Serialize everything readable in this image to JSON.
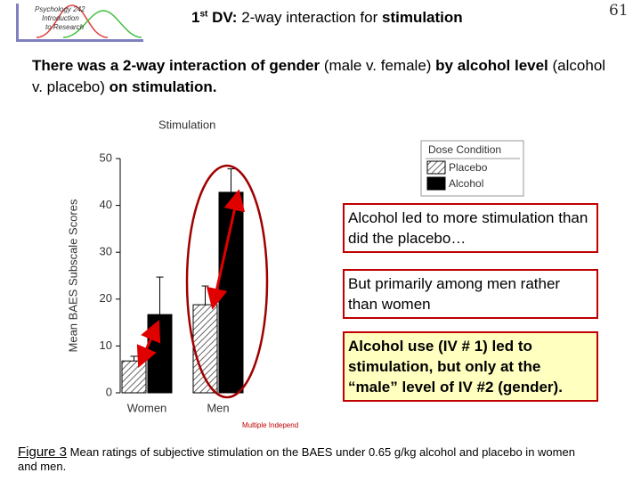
{
  "header": {
    "logo_lines": [
      "Psychology 242",
      "Introduction",
      "to Research"
    ],
    "title": {
      "number": "1",
      "superscript": "st",
      "prefix": "DV:",
      "middle": "2-way interaction for",
      "emphasis": "stimulation"
    },
    "page_number": "61"
  },
  "intro": [
    "There was a 2-way interaction of gender",
    "(male v. female)",
    "by alcohol level",
    "(alcohol v. placebo)",
    "on stimulation."
  ],
  "chart_data": {
    "type": "bar",
    "title": "Stimulation",
    "y_label": "Mean BAES Subscale Scores",
    "categories": [
      "Women",
      "Men"
    ],
    "legend_title": "Dose Condition",
    "series": [
      {
        "name": "Placebo",
        "color": "#d8d8d8",
        "values": [
          6.8,
          18.8
        ],
        "errors": [
          1,
          4
        ]
      },
      {
        "name": "Alcohol",
        "color": "#000000",
        "values": [
          16.7,
          42.8
        ],
        "errors": [
          8,
          5
        ]
      }
    ],
    "ylim": [
      0,
      50
    ],
    "yticks": [
      0,
      10,
      20,
      30,
      40,
      50
    ],
    "note": "Multiple Independ"
  },
  "callouts": [
    "Alcohol led to more stimulation than did the placebo…",
    "But primarily among men rather than women",
    "Alcohol use (IV # 1) led to stimulation, but only at the “male” level of IV #2 (gender)."
  ],
  "caption": {
    "label": "Figure 3",
    "text": "Mean ratings of subjective stimulation on the BAES under 0.65 g/kg alcohol and placebo in women and men."
  }
}
